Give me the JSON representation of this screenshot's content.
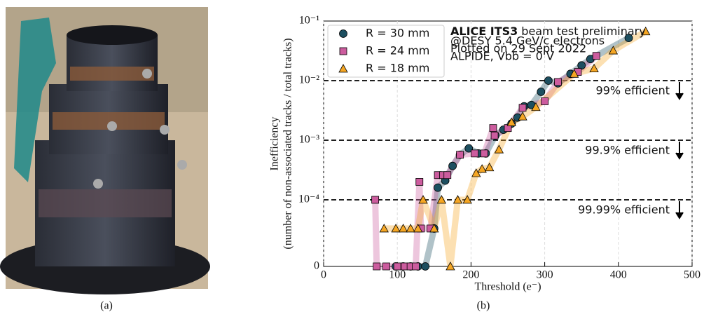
{
  "chart_data": {
    "type": "scatter",
    "annotation": {
      "experiment": "ALICE ITS3",
      "status": "beam test preliminary",
      "lines": [
        "@DESY 5.4 GeV/c electrons",
        "Plotted on 29 Sept 2022",
        "ALPIDE, Vbb = 0 V"
      ]
    },
    "xlabel": "Threshold (e⁻)",
    "ylabel": [
      "Inefficiency",
      "(number of non-associated tracks / total tracks)"
    ],
    "xlim": [
      0,
      500
    ],
    "xticks": [
      0,
      100,
      200,
      300,
      400,
      500
    ],
    "ylim": [
      0,
      0.1
    ],
    "yscale": "log-with-zero",
    "yticks": [
      0,
      {
        "value": 0.0001,
        "label": "10⁻⁴"
      },
      {
        "value": 0.001,
        "label": "10⁻³"
      },
      {
        "value": 0.01,
        "label": "10⁻²"
      },
      {
        "value": 0.1,
        "label": "10⁻¹"
      }
    ],
    "grid": true,
    "legend": "upper left",
    "thresholds": [
      {
        "value": 0.01,
        "label": "99% efficient"
      },
      {
        "value": 0.001,
        "label": "99.9% efficient"
      },
      {
        "value": 0.0001,
        "label": "99.99% efficient"
      }
    ],
    "series": [
      {
        "name": "R = 30 mm",
        "color": "#1d4f60",
        "marker": "circle",
        "x": [
          98,
          108,
          118,
          128,
          138,
          150,
          155,
          165,
          175,
          185,
          197,
          210,
          220,
          233,
          244,
          255,
          263,
          272,
          282,
          295,
          305,
          318,
          335,
          350,
          362,
          414
        ],
        "values": [
          0,
          0,
          0,
          0,
          0,
          3.3e-05,
          0.00016,
          0.00021,
          0.00037,
          0.00057,
          0.00073,
          0.0006,
          0.0006,
          0.0012,
          0.0015,
          0.0019,
          0.0024,
          0.0037,
          0.0039,
          0.0065,
          0.01,
          0.009,
          0.013,
          0.018,
          0.023,
          0.052
        ]
      },
      {
        "name": "R = 24 mm",
        "color": "#cc5c9e",
        "marker": "square",
        "x": [
          70,
          72,
          85,
          100,
          110,
          118,
          125,
          130,
          132,
          145,
          155,
          162,
          168,
          185,
          205,
          218,
          230,
          232,
          250,
          270,
          300,
          318,
          345,
          370
        ],
        "values": [
          0.0001,
          0,
          0,
          0,
          0,
          0,
          0,
          0.0002,
          3.3e-05,
          3.3e-05,
          0.00026,
          0.00026,
          0.00026,
          0.00057,
          0.0006,
          0.0006,
          0.0016,
          0.0012,
          0.0016,
          0.0035,
          0.0045,
          0.0095,
          0.014,
          0.026
        ]
      },
      {
        "name": "R = 18 mm",
        "color": "#f5a623",
        "marker": "triangle",
        "x": [
          82,
          98,
          108,
          118,
          128,
          135,
          150,
          160,
          172,
          182,
          195,
          207,
          215,
          225,
          238,
          255,
          270,
          288,
          340,
          367,
          393,
          437
        ],
        "values": [
          3.3e-05,
          3.3e-05,
          3.3e-05,
          3.3e-05,
          3.3e-05,
          0.0001,
          3.3e-05,
          0.0001,
          0,
          0.0001,
          0.0001,
          0.00028,
          0.00033,
          0.00035,
          0.0007,
          0.002,
          0.0025,
          0.0036,
          0.013,
          0.016,
          0.032,
          0.067
        ]
      }
    ]
  },
  "captions": [
    "(a)",
    "(b)"
  ]
}
